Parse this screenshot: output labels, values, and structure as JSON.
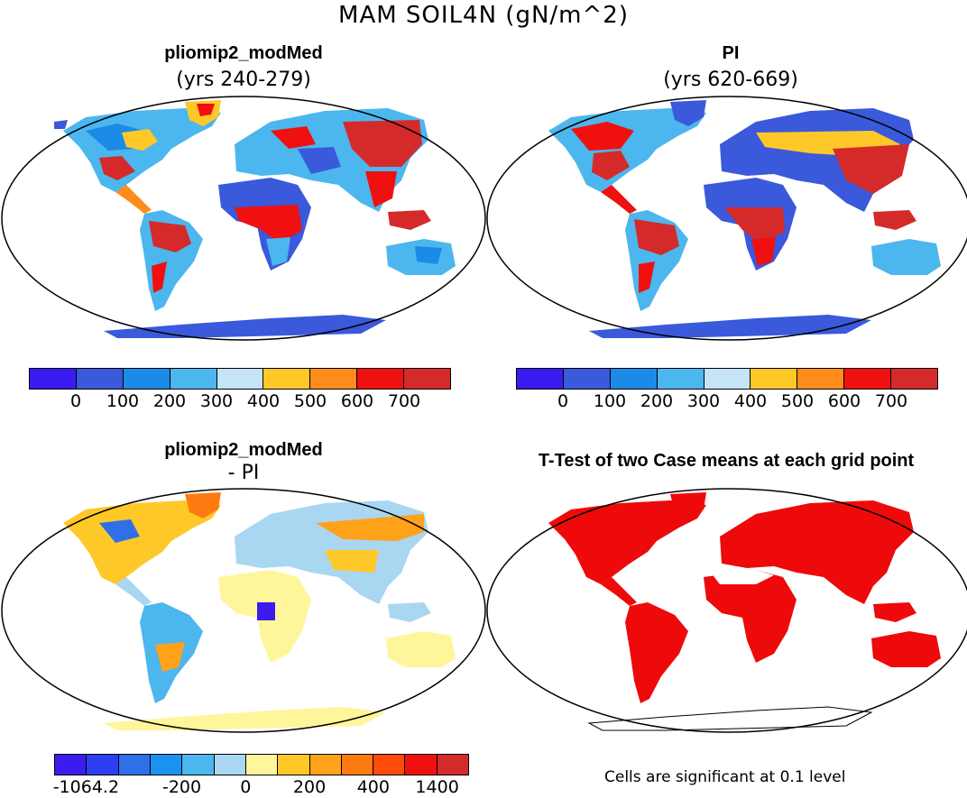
{
  "main_title": "MAM SOIL4N (gN/m^2)",
  "panels": {
    "top_left": {
      "title": "pliomip2_modMed",
      "subtitle": "(yrs 240-279)"
    },
    "top_right": {
      "title": "PI",
      "subtitle": "(yrs 620-669)"
    },
    "bottom_left": {
      "title": "pliomip2_modMed",
      "subtitle": "- PI"
    },
    "bottom_right": {
      "title": "T-Test of two Case means at each grid point"
    }
  },
  "colorbars": {
    "absolute": {
      "colors": [
        "#3b1cf0",
        "#3a59db",
        "#1c8be8",
        "#4cb6ee",
        "#c5e4f5",
        "#ffc829",
        "#ff8c1a",
        "#f01010",
        "#d42a2a"
      ],
      "labels": [
        "0",
        "100",
        "200",
        "300",
        "400",
        "500",
        "600",
        "700"
      ]
    },
    "difference": {
      "colors": [
        "#3b1cf0",
        "#2d3ff0",
        "#2f6fe8",
        "#1a93f0",
        "#4cb6ee",
        "#a9d6f1",
        "#fff59a",
        "#ffc829",
        "#ffa21a",
        "#ff7a10",
        "#ff4a0a",
        "#f01010",
        "#d42a2a"
      ],
      "labels": [
        "-1064.2",
        "-200",
        "0",
        "200",
        "400",
        "1400"
      ]
    }
  },
  "significance_note": "Cells are significant at 0.1 level",
  "map_colors": {
    "ocean": "#ffffff",
    "significant": "#ee0a0a",
    "antarctic_abs": "#3a59db",
    "antarctic_diff": "#fff59a"
  }
}
